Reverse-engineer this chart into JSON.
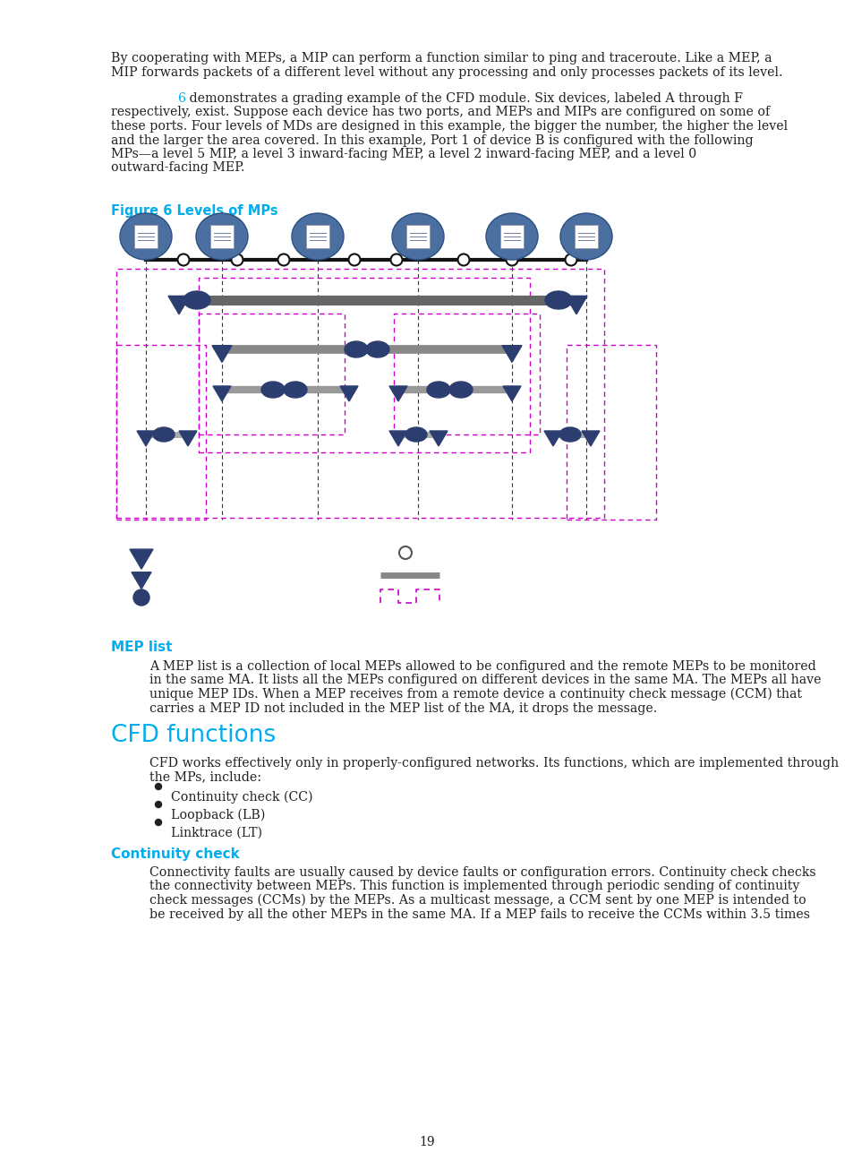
{
  "page_number": "19",
  "background_color": "#ffffff",
  "text_color": "#231f20",
  "cyan_heading_color": "#00aeef",
  "para1_lines": [
    "By cooperating with MEPs, a MIP can perform a function similar to ping and traceroute. Like a MEP, a",
    "MIP forwards packets of a different level without any processing and only processes packets of its level."
  ],
  "para2_indent_prefix": "        ",
  "para2_ref": "6",
  "para2_line1_rest": " demonstrates a grading example of the CFD module. Six devices, labeled A through F",
  "para2_more": [
    "respectively, exist. Suppose each device has two ports, and MEPs and MIPs are configured on some of",
    "these ports. Four levels of MDs are designed in this example, the bigger the number, the higher the level",
    "and the larger the area covered. In this example, Port 1 of device B is configured with the following",
    "MPs—a level 5 MIP, a level 3 inward-facing MEP, a level 2 inward-facing MEP, and a level 0",
    "outward-facing MEP."
  ],
  "fig_caption": "Figure 6 Levels of MPs",
  "section_mep": "MEP list",
  "mep_body_lines": [
    "A MEP list is a collection of local MEPs allowed to be configured and the remote MEPs to be monitored",
    "in the same MA. It lists all the MEPs configured on different devices in the same MA. The MEPs all have",
    "unique MEP IDs. When a MEP receives from a remote device a continuity check message (CCM) that",
    "carries a MEP ID not included in the MEP list of the MA, it drops the message."
  ],
  "section_cfd": "CFD functions",
  "cfd_body_lines": [
    "CFD works effectively only in properly-configured networks. Its functions, which are implemented through",
    "the MPs, include:"
  ],
  "bullets": [
    "Continuity check (CC)",
    "Loopback (LB)",
    "Linktrace (LT)"
  ],
  "section_cc": "Continuity check",
  "cc_body_lines": [
    "Connectivity faults are usually caused by device faults or configuration errors. Continuity check checks",
    "the connectivity between MEPs. This function is implemented through periodic sending of continuity",
    "check messages (CCMs) by the MEPs. As a multicast message, a CCM sent by one MEP is intended to",
    "be received by all the other MEPs in the same MA. If a MEP fails to receive the CCMs within 3.5 times"
  ],
  "mep_color": "#2c3e70",
  "bar_color_5": "#666666",
  "bar_color_3": "#888888",
  "bar_color_2": "#999999",
  "bar_color_0": "#aaaaaa",
  "magenta": "#cc00cc",
  "router_color": "#4a6fa0",
  "router_edge": "#2a4f80"
}
